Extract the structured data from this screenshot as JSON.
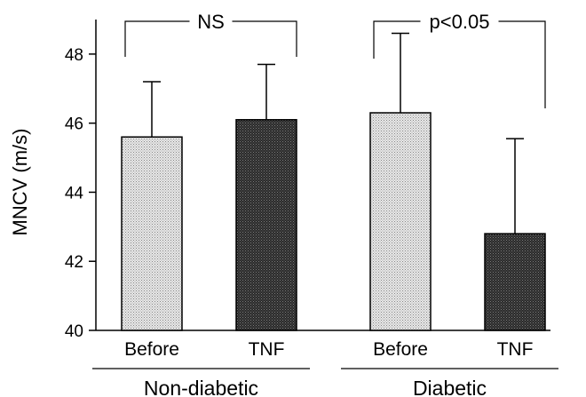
{
  "chart_data": {
    "type": "bar",
    "ylabel": "MNCV (m/s)",
    "ylim": [
      40,
      49
    ],
    "yticks": [
      40,
      42,
      44,
      46,
      48
    ],
    "groups": [
      {
        "label": "Non-diabetic",
        "bars": [
          {
            "label": "Before",
            "value": 45.6,
            "error": 1.6,
            "color": "#d9d9d9"
          },
          {
            "label": "TNF",
            "value": 46.1,
            "error": 1.6,
            "color": "#3a3a3a"
          }
        ],
        "significance": "NS"
      },
      {
        "label": "Diabetic",
        "bars": [
          {
            "label": "Before",
            "value": 46.3,
            "error": 2.3,
            "color": "#d9d9d9"
          },
          {
            "label": "TNF",
            "value": 42.8,
            "error": 2.75,
            "color": "#3a3a3a"
          }
        ],
        "significance": "p<0.05"
      }
    ]
  }
}
